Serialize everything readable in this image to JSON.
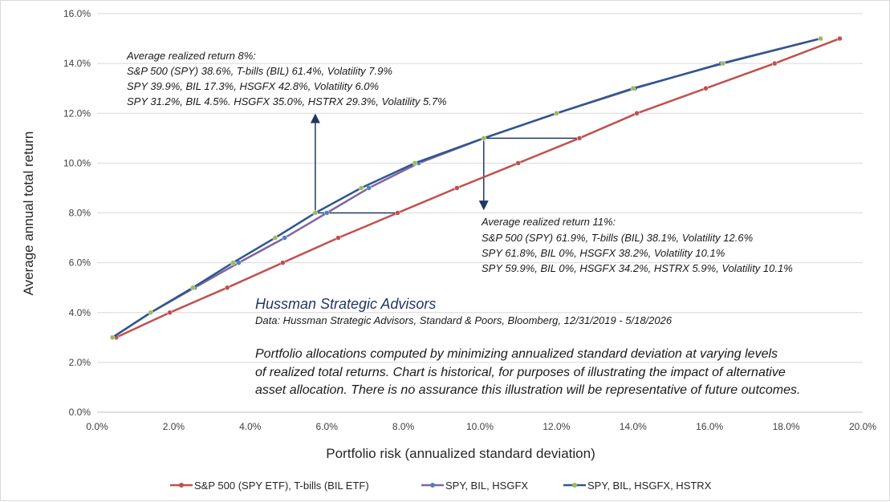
{
  "colors": {
    "sp_bil": "#c0504d",
    "spy_bil_hsgfx_line": "#8064a2",
    "spy_bil_hsgfx_marker": "#4f81bd",
    "spy_bil_hsgfx_hstrx_line": "#2e5790",
    "spy_bil_hsgfx_hstrx_marker": "#9bbb59",
    "annotation_arrow": "#1f3864",
    "gridline": "#d9d9d9"
  },
  "chart_data": {
    "type": "line",
    "xlabel": "Portfolio risk (annualized standard deviation)",
    "ylabel": "Average annual total return",
    "xlim": [
      0,
      20
    ],
    "ylim": [
      0,
      16
    ],
    "x_ticks": [
      "0.0%",
      "2.0%",
      "4.0%",
      "6.0%",
      "8.0%",
      "10.0%",
      "12.0%",
      "14.0%",
      "16.0%",
      "18.0%",
      "20.0%"
    ],
    "y_ticks": [
      "0.0%",
      "2.0%",
      "4.0%",
      "6.0%",
      "8.0%",
      "10.0%",
      "12.0%",
      "14.0%",
      "16.0%"
    ],
    "grid": "horizontal",
    "legend_position": "bottom",
    "series": [
      {
        "name": "S&P 500 (SPY ETF), T-bills (BIL ETF)",
        "color_key": "sp_bil",
        "points": [
          [
            0.5,
            3.0
          ],
          [
            1.9,
            4.0
          ],
          [
            3.4,
            5.0
          ],
          [
            4.85,
            6.0
          ],
          [
            6.3,
            7.0
          ],
          [
            7.85,
            8.0
          ],
          [
            9.4,
            9.0
          ],
          [
            11.0,
            10.0
          ],
          [
            12.6,
            11.0
          ],
          [
            14.1,
            12.0
          ],
          [
            15.9,
            13.0
          ],
          [
            17.7,
            14.0
          ],
          [
            19.4,
            15.0
          ]
        ]
      },
      {
        "name": "SPY, BIL, HSGFX",
        "color_key": "spy_bil_hsgfx",
        "points": [
          [
            0.4,
            3.0
          ],
          [
            1.4,
            4.0
          ],
          [
            2.55,
            5.0
          ],
          [
            3.7,
            6.0
          ],
          [
            4.9,
            7.0
          ],
          [
            6.0,
            8.0
          ],
          [
            7.1,
            9.0
          ],
          [
            8.4,
            10.0
          ],
          [
            10.1,
            11.0
          ],
          [
            12.0,
            12.0
          ],
          [
            14.05,
            13.0
          ],
          [
            16.3,
            14.0
          ],
          [
            18.9,
            15.0
          ]
        ]
      },
      {
        "name": "SPY, BIL, HSGFX, HSTRX",
        "color_key": "spy_bil_hsgfx_hstrx",
        "points": [
          [
            0.4,
            3.0
          ],
          [
            1.4,
            4.0
          ],
          [
            2.5,
            5.0
          ],
          [
            3.55,
            6.0
          ],
          [
            4.65,
            7.0
          ],
          [
            5.7,
            8.0
          ],
          [
            6.9,
            9.0
          ],
          [
            8.3,
            10.0
          ],
          [
            10.1,
            11.0
          ],
          [
            12.0,
            12.0
          ],
          [
            14.0,
            13.0
          ],
          [
            16.35,
            14.0
          ],
          [
            18.9,
            15.0
          ]
        ]
      }
    ],
    "annotations": {
      "block_8": {
        "lines": [
          "Average realized return 8%:",
          "S&P 500 (SPY) 38.6%, T-bills (BIL) 61.4%, Volatility 7.9%",
          "SPY 39.9%, BIL 17.3%, HSGFX 42.8%, Volatility 6.0%",
          "SPY 31.2%, BIL 4.5%. HSGFX 35.0%, HSTRX 29.3%, Volatility 5.7%"
        ]
      },
      "block_11": {
        "lines": [
          "Average realized return 11%:",
          "S&P 500 (SPY) 61.9%, T-bills (BIL) 38.1%, Volatility 12.6%",
          "SPY 61.8%, BIL 0%, HSGFX 38.2%, Volatility 10.1%",
          "SPY 59.9%, BIL 0%, HSGFX 34.2%, HSTRX 5.9%, Volatility 10.1%"
        ]
      },
      "arrows": [
        {
          "from": [
            5.7,
            8.0
          ],
          "to": [
            7.85,
            8.0
          ],
          "type": "horizontal"
        },
        {
          "from": [
            5.7,
            8.0
          ],
          "to": [
            5.7,
            11.8
          ],
          "type": "vertical-up"
        },
        {
          "from": [
            10.1,
            11.0
          ],
          "to": [
            12.6,
            11.0
          ],
          "type": "horizontal"
        },
        {
          "from": [
            10.1,
            11.0
          ],
          "to": [
            10.1,
            8.3
          ],
          "type": "vertical-down"
        }
      ],
      "source_title": "Hussman Strategic Advisors",
      "source_data": "Data: Hussman Strategic Advisors, Standard & Poors, Bloomberg, 12/31/2019 - 5/18/2026",
      "note_lines": [
        "Portfolio allocations computed by minimizing annualized standard deviation at varying levels",
        "of realized total returns. Chart is historical, for purposes of illustrating the impact of alternative",
        "asset allocation. There is no assurance this illustration will be representative of future outcomes."
      ]
    }
  }
}
